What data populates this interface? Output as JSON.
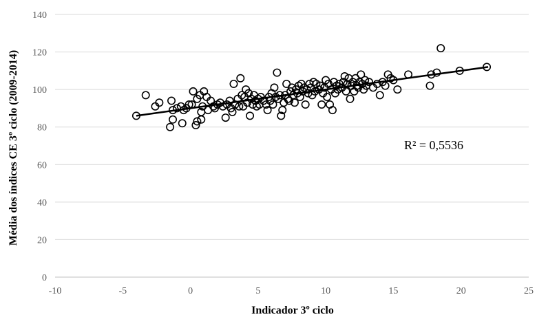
{
  "chart_data": {
    "type": "scatter",
    "title": "",
    "xlabel": "Indicador 3º ciclo",
    "ylabel": "Média dos índices  CE 3º ciclo (2009-2014)",
    "xlim": [
      -10,
      25
    ],
    "ylim": [
      0,
      140
    ],
    "x_ticks": [
      -10,
      -5,
      0,
      5,
      10,
      15,
      20,
      25
    ],
    "y_ticks": [
      0,
      20,
      40,
      60,
      80,
      100,
      120,
      140
    ],
    "grid": "horizontal",
    "legend": "none",
    "annotation": "R² = 0,5536",
    "trendline": {
      "x": [
        -4,
        22
      ],
      "y": [
        86,
        112
      ]
    },
    "colors": {
      "marker": "#000000",
      "trendline": "#000000",
      "grid": "#d9d9d9"
    },
    "points": [
      [
        -4,
        86
      ],
      [
        -3.3,
        97
      ],
      [
        -2.6,
        91
      ],
      [
        -2.3,
        93
      ],
      [
        -1.5,
        80
      ],
      [
        -1.4,
        94
      ],
      [
        -1.3,
        84
      ],
      [
        -1.3,
        89
      ],
      [
        -1.0,
        90
      ],
      [
        -0.7,
        91
      ],
      [
        -0.6,
        82
      ],
      [
        -0.5,
        89
      ],
      [
        -0.3,
        90
      ],
      [
        -0.1,
        92
      ],
      [
        0.1,
        92
      ],
      [
        0.2,
        99
      ],
      [
        0.4,
        81
      ],
      [
        0.5,
        83
      ],
      [
        0.5,
        95
      ],
      [
        0.7,
        97
      ],
      [
        0.8,
        84
      ],
      [
        0.8,
        88
      ],
      [
        0.9,
        91
      ],
      [
        1.0,
        99
      ],
      [
        1.2,
        96
      ],
      [
        1.3,
        89
      ],
      [
        1.5,
        94
      ],
      [
        1.7,
        91
      ],
      [
        1.8,
        90
      ],
      [
        2.0,
        92
      ],
      [
        2.2,
        93
      ],
      [
        2.4,
        91
      ],
      [
        2.6,
        85
      ],
      [
        2.7,
        92
      ],
      [
        2.9,
        94
      ],
      [
        3.0,
        90
      ],
      [
        3.1,
        88
      ],
      [
        3.2,
        103
      ],
      [
        3.3,
        92
      ],
      [
        3.5,
        95
      ],
      [
        3.6,
        91
      ],
      [
        3.7,
        106
      ],
      [
        3.8,
        97
      ],
      [
        3.9,
        91
      ],
      [
        4.0,
        96
      ],
      [
        4.1,
        100
      ],
      [
        4.2,
        93
      ],
      [
        4.3,
        98
      ],
      [
        4.4,
        86
      ],
      [
        4.5,
        95
      ],
      [
        4.6,
        92
      ],
      [
        4.7,
        97
      ],
      [
        4.8,
        94
      ],
      [
        4.9,
        91
      ],
      [
        5.0,
        95
      ],
      [
        5.1,
        92
      ],
      [
        5.2,
        96
      ],
      [
        5.4,
        94
      ],
      [
        5.6,
        92
      ],
      [
        5.7,
        89
      ],
      [
        5.8,
        96
      ],
      [
        5.9,
        94
      ],
      [
        6.0,
        98
      ],
      [
        6.1,
        92
      ],
      [
        6.2,
        101
      ],
      [
        6.3,
        96
      ],
      [
        6.4,
        109
      ],
      [
        6.5,
        95
      ],
      [
        6.6,
        97
      ],
      [
        6.7,
        86
      ],
      [
        6.8,
        89
      ],
      [
        6.9,
        93
      ],
      [
        7.0,
        97
      ],
      [
        7.1,
        103
      ],
      [
        7.2,
        95
      ],
      [
        7.3,
        94
      ],
      [
        7.4,
        99
      ],
      [
        7.5,
        101
      ],
      [
        7.6,
        97
      ],
      [
        7.7,
        93
      ],
      [
        7.8,
        100
      ],
      [
        7.9,
        98
      ],
      [
        8.0,
        102
      ],
      [
        8.1,
        96
      ],
      [
        8.2,
        103
      ],
      [
        8.3,
        99
      ],
      [
        8.4,
        101
      ],
      [
        8.5,
        92
      ],
      [
        8.6,
        100
      ],
      [
        8.7,
        98
      ],
      [
        8.8,
        103
      ],
      [
        8.9,
        101
      ],
      [
        9.0,
        97
      ],
      [
        9.1,
        104
      ],
      [
        9.2,
        99
      ],
      [
        9.3,
        103
      ],
      [
        9.5,
        100
      ],
      [
        9.6,
        102
      ],
      [
        9.7,
        92
      ],
      [
        9.8,
        98
      ],
      [
        9.9,
        101
      ],
      [
        10.0,
        105
      ],
      [
        10.1,
        96
      ],
      [
        10.2,
        103
      ],
      [
        10.3,
        92
      ],
      [
        10.4,
        100
      ],
      [
        10.5,
        89
      ],
      [
        10.6,
        104
      ],
      [
        10.7,
        98
      ],
      [
        10.8,
        102
      ],
      [
        10.9,
        100
      ],
      [
        11.0,
        103
      ],
      [
        11.2,
        101
      ],
      [
        11.3,
        104
      ],
      [
        11.4,
        107
      ],
      [
        11.5,
        99
      ],
      [
        11.6,
        103
      ],
      [
        11.7,
        106
      ],
      [
        11.8,
        95
      ],
      [
        11.9,
        102
      ],
      [
        12.0,
        104
      ],
      [
        12.1,
        99
      ],
      [
        12.2,
        106
      ],
      [
        12.3,
        102
      ],
      [
        12.4,
        101
      ],
      [
        12.5,
        104
      ],
      [
        12.6,
        108
      ],
      [
        12.7,
        103
      ],
      [
        12.8,
        100
      ],
      [
        12.9,
        105
      ],
      [
        13.0,
        102
      ],
      [
        13.2,
        104
      ],
      [
        13.5,
        101
      ],
      [
        13.8,
        103
      ],
      [
        14.0,
        97
      ],
      [
        14.2,
        104
      ],
      [
        14.4,
        102
      ],
      [
        14.6,
        108
      ],
      [
        14.8,
        106
      ],
      [
        15.0,
        105
      ],
      [
        15.3,
        100
      ],
      [
        16.1,
        108
      ],
      [
        17.7,
        102
      ],
      [
        17.8,
        108
      ],
      [
        18.2,
        109
      ],
      [
        18.5,
        122
      ],
      [
        19.9,
        110
      ],
      [
        21.9,
        112
      ]
    ]
  }
}
